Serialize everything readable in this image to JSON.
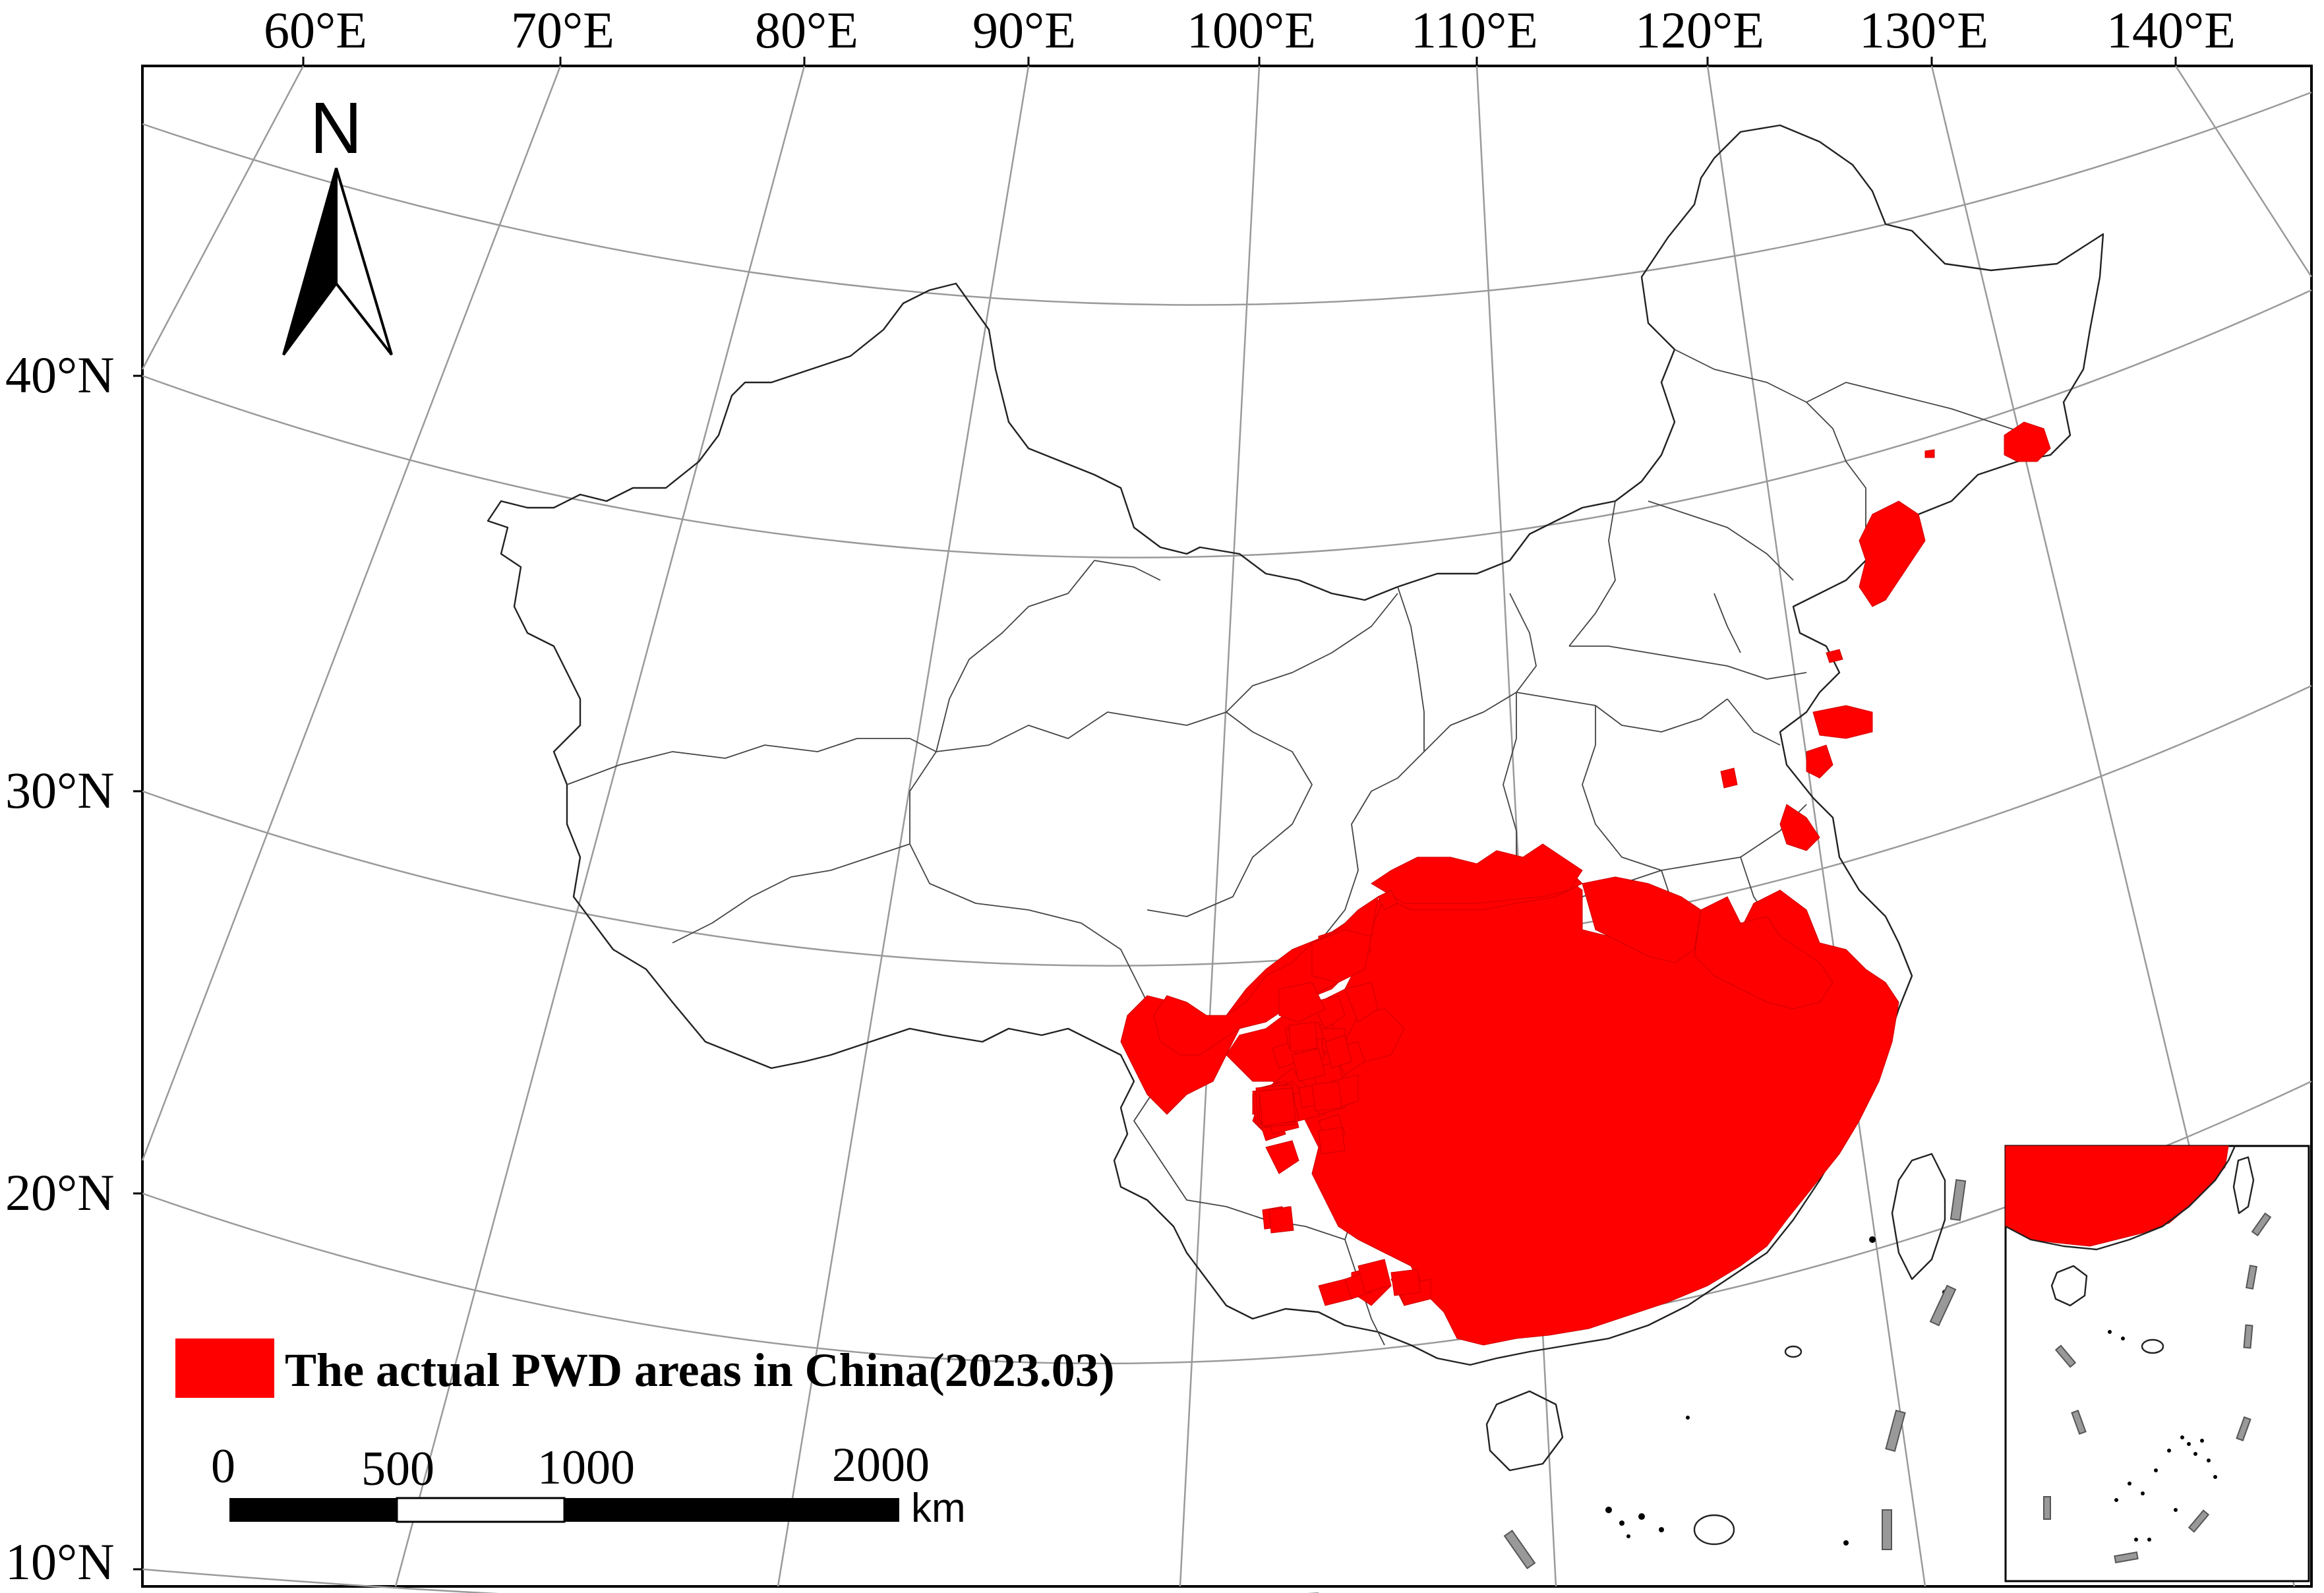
{
  "map": {
    "longitude_labels": [
      "60°E",
      "70°E",
      "80°E",
      "90°E",
      "100°E",
      "110°E",
      "120°E",
      "130°E",
      "140°E"
    ],
    "latitude_labels": [
      "40°N",
      "30°N",
      "20°N",
      "10°N"
    ],
    "north_arrow": {
      "label": "N",
      "icon": "north-arrow-icon"
    },
    "legend": {
      "label": "The actual PWD areas in China(2023.03)",
      "color": "#ff0000"
    },
    "scale_bar": {
      "ticks": [
        "0",
        "500",
        "1000",
        "2000"
      ],
      "unit": "km"
    },
    "inset": {
      "name": "South China Sea islands inset"
    }
  }
}
